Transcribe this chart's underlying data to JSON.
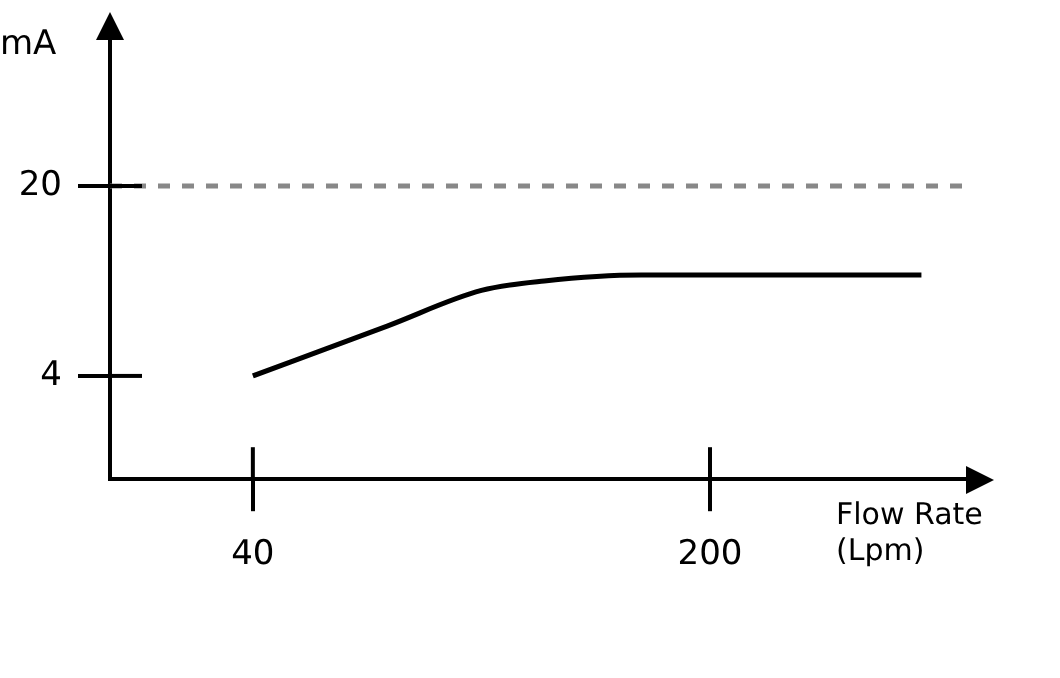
{
  "chart_data": {
    "type": "line",
    "xlabel": "Flow Rate (Lpm)",
    "ylabel": "mA",
    "x": [
      40,
      87,
      120,
      142,
      176,
      274
    ],
    "series": [
      {
        "color": "#000000",
        "values": [
          4,
          8.2,
          11.2,
          12,
          12.5,
          12.5
        ]
      }
    ],
    "xlim": [
      -10,
      291
    ],
    "ylim": [
      -4.7,
      32.6
    ],
    "xticks": [
      40,
      200
    ],
    "yticks": [
      4,
      20
    ],
    "ref_lines": [
      {
        "axis": "y",
        "value": 20,
        "color": "#888888",
        "line_style": "dashed"
      }
    ],
    "grid": false,
    "legend": false,
    "marker": "none",
    "line_style": "solid"
  }
}
